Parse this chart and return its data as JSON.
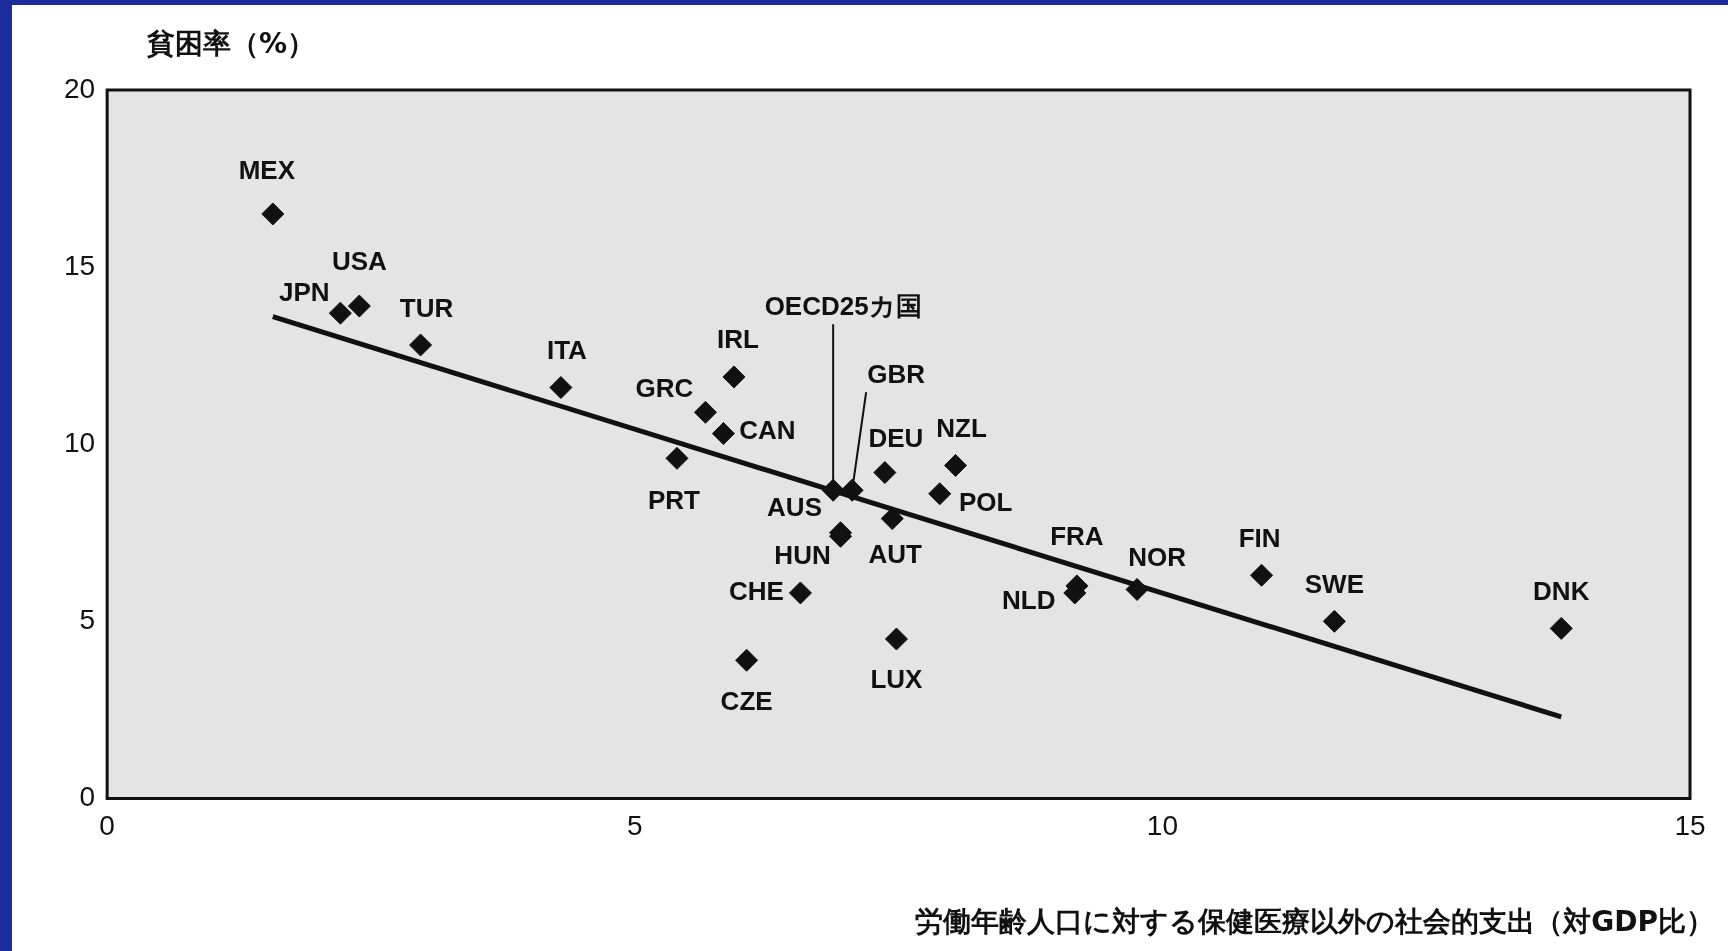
{
  "chart_data": {
    "type": "scatter",
    "ylabel": "貧困率（%）",
    "xlabel": "労働年齢人口に対する保健医療以外の社会的支出（対GDP比）",
    "xlim": [
      0,
      15
    ],
    "xticks": [
      0,
      5,
      10,
      15
    ],
    "ylim": [
      0,
      20
    ],
    "yticks": [
      0,
      5,
      10,
      15,
      20
    ],
    "legend": false,
    "marker": "diamond",
    "series": [
      {
        "color": "#111111",
        "x": [
          1.57,
          2.21,
          2.39,
          2.97,
          4.3,
          5.94,
          5.67,
          5.84,
          5.4,
          6.88,
          7.06,
          7.37,
          8.04,
          7.89,
          6.95,
          6.95,
          7.44,
          6.57,
          6.06,
          7.48,
          9.19,
          9.17,
          9.76,
          10.94,
          11.63,
          13.78
        ],
        "values": [
          16.5,
          13.7,
          13.9,
          12.8,
          11.6,
          11.9,
          10.9,
          10.3,
          9.6,
          8.7,
          8.7,
          9.2,
          9.4,
          8.6,
          7.5,
          7.4,
          7.9,
          5.8,
          3.9,
          4.5,
          6.0,
          5.8,
          5.9,
          6.3,
          5.0,
          4.8
        ]
      },
      {
        "type": "line",
        "marker": "none",
        "color": "#111111",
        "x": [
          1.57,
          13.78
        ],
        "values": [
          13.6,
          2.3
        ]
      }
    ],
    "annotations": [
      {
        "text": "MEX",
        "x": 1.57,
        "y": 16.5
      },
      {
        "text": "JPN",
        "x": 2.21,
        "y": 13.7
      },
      {
        "text": "USA",
        "x": 2.39,
        "y": 13.9
      },
      {
        "text": "TUR",
        "x": 2.97,
        "y": 12.8
      },
      {
        "text": "ITA",
        "x": 4.3,
        "y": 11.6
      },
      {
        "text": "IRL",
        "x": 5.94,
        "y": 11.9
      },
      {
        "text": "GRC",
        "x": 5.67,
        "y": 10.9
      },
      {
        "text": "CAN",
        "x": 5.84,
        "y": 10.3
      },
      {
        "text": "PRT",
        "x": 5.4,
        "y": 9.6
      },
      {
        "text": "OECD25カ国",
        "x": 6.88,
        "y": 8.7
      },
      {
        "text": "GBR",
        "x": 7.06,
        "y": 8.7
      },
      {
        "text": "DEU",
        "x": 7.37,
        "y": 9.2
      },
      {
        "text": "NZL",
        "x": 8.04,
        "y": 9.4
      },
      {
        "text": "POL",
        "x": 7.89,
        "y": 8.6
      },
      {
        "text": "AUS",
        "x": 6.95,
        "y": 7.5
      },
      {
        "text": "HUN",
        "x": 6.95,
        "y": 7.4
      },
      {
        "text": "AUT",
        "x": 7.44,
        "y": 7.9
      },
      {
        "text": "CHE",
        "x": 6.57,
        "y": 5.8
      },
      {
        "text": "CZE",
        "x": 6.06,
        "y": 3.9
      },
      {
        "text": "LUX",
        "x": 7.48,
        "y": 4.5
      },
      {
        "text": "FRA",
        "x": 9.19,
        "y": 6.0
      },
      {
        "text": "NLD",
        "x": 9.17,
        "y": 5.8
      },
      {
        "text": "NOR",
        "x": 9.76,
        "y": 5.9
      },
      {
        "text": "FIN",
        "x": 10.94,
        "y": 6.3
      },
      {
        "text": "SWE",
        "x": 11.63,
        "y": 5.0
      },
      {
        "text": "DNK",
        "x": 13.78,
        "y": 4.8
      }
    ]
  }
}
